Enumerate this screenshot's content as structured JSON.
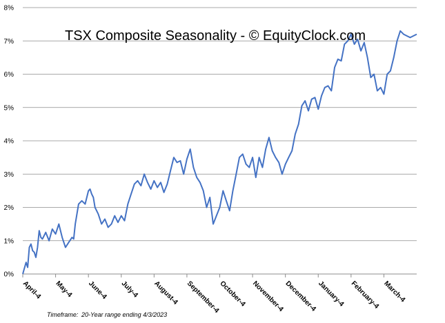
{
  "chart_data": {
    "type": "line",
    "title": "TSX Composite Seasonality - © EquityClock.com",
    "footer": {
      "label": "Timeframe:",
      "value": "20-Year  range ending 4/3/2023"
    },
    "xlabel": "",
    "ylabel": "",
    "ylim": [
      0,
      8
    ],
    "yticks": [
      "0%",
      "1%",
      "2%",
      "3%",
      "4%",
      "5%",
      "6%",
      "7%",
      "8%"
    ],
    "xticks": [
      "April-4",
      "May-4",
      "June-4",
      "July-4",
      "August-4",
      "September-4",
      "October-4",
      "November-4",
      "December-4",
      "January-4",
      "February-4",
      "March-4"
    ],
    "xlim": [
      0,
      12
    ],
    "grid": true,
    "line_color": "#4472C4",
    "series": [
      {
        "x": [
          0,
          0.1,
          0.15,
          0.2,
          0.25,
          0.3,
          0.35,
          0.4,
          0.45,
          0.5,
          0.55,
          0.6,
          0.7,
          0.8,
          0.9,
          1.0,
          1.1,
          1.2,
          1.3,
          1.4,
          1.5,
          1.55,
          1.6,
          1.7,
          1.8,
          1.9,
          2.0,
          2.05,
          2.1,
          2.15,
          2.2,
          2.3,
          2.4,
          2.5,
          2.6,
          2.7,
          2.8,
          2.9,
          3.0,
          3.1,
          3.2,
          3.3,
          3.4,
          3.5,
          3.6,
          3.7,
          3.8,
          3.9,
          4.0,
          4.1,
          4.2,
          4.3,
          4.4,
          4.5,
          4.6,
          4.7,
          4.8,
          4.9,
          5.0,
          5.1,
          5.2,
          5.3,
          5.4,
          5.5,
          5.6,
          5.7,
          5.8,
          5.9,
          6.0,
          6.1,
          6.2,
          6.3,
          6.4,
          6.5,
          6.6,
          6.7,
          6.8,
          6.9,
          7.0,
          7.1,
          7.2,
          7.3,
          7.4,
          7.5,
          7.6,
          7.7,
          7.8,
          7.9,
          8.0,
          8.1,
          8.2,
          8.3,
          8.4,
          8.5,
          8.6,
          8.7,
          8.8,
          8.9,
          9.0,
          9.1,
          9.2,
          9.3,
          9.4,
          9.5,
          9.6,
          9.7,
          9.8,
          9.9,
          10.0,
          10.1,
          10.2,
          10.3,
          10.4,
          10.5,
          10.6,
          10.7,
          10.8,
          10.9,
          11.0,
          11.1,
          11.2,
          11.3,
          11.4,
          11.5,
          11.6,
          11.7,
          11.8,
          11.9,
          12.0
        ],
        "values": [
          0.0,
          0.35,
          0.2,
          0.8,
          0.9,
          0.7,
          0.65,
          0.5,
          0.8,
          1.3,
          1.1,
          1.05,
          1.25,
          1.0,
          1.35,
          1.2,
          1.5,
          1.1,
          0.8,
          0.95,
          1.1,
          1.05,
          1.5,
          2.1,
          2.2,
          2.1,
          2.5,
          2.55,
          2.4,
          2.3,
          2.0,
          1.8,
          1.5,
          1.65,
          1.4,
          1.5,
          1.75,
          1.55,
          1.75,
          1.6,
          2.1,
          2.4,
          2.7,
          2.8,
          2.65,
          3.0,
          2.75,
          2.55,
          2.8,
          2.6,
          2.75,
          2.45,
          2.7,
          3.1,
          3.5,
          3.35,
          3.4,
          3.0,
          3.45,
          3.75,
          3.2,
          2.9,
          2.75,
          2.5,
          2.0,
          2.3,
          1.5,
          1.75,
          2.0,
          2.5,
          2.2,
          1.9,
          2.5,
          3.0,
          3.5,
          3.6,
          3.3,
          3.2,
          3.5,
          2.9,
          3.5,
          3.2,
          3.75,
          4.1,
          3.7,
          3.5,
          3.35,
          3.0,
          3.3,
          3.5,
          3.7,
          4.2,
          4.5,
          5.05,
          5.2,
          4.9,
          5.25,
          5.3,
          4.95,
          5.35,
          5.6,
          5.65,
          5.5,
          6.2,
          6.45,
          6.4,
          6.9,
          7.0,
          7.2,
          6.9,
          7.05,
          6.7,
          6.95,
          6.5,
          5.9,
          6.0,
          5.5,
          5.6,
          5.4,
          6.0,
          6.1,
          6.5,
          7.0,
          7.3,
          7.2,
          7.15,
          7.1,
          7.15,
          7.2
        ]
      }
    ]
  }
}
